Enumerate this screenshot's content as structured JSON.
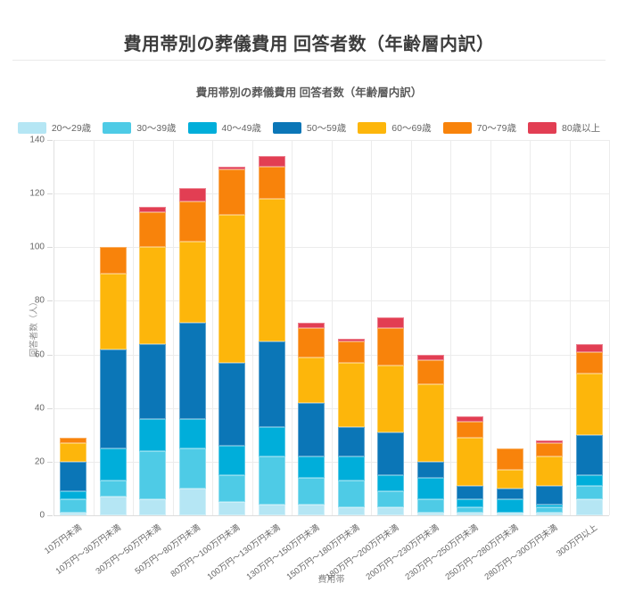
{
  "page": {
    "title": "費用帯別の葬儀費用 回答者数（年齢層内訳）"
  },
  "chart": {
    "subtitle": "費用帯別の葬儀費用 回答者数（年齢層内訳）"
  },
  "chart_data": {
    "type": "bar",
    "stacked": true,
    "title": "費用帯別の葬儀費用 回答者数（年齢層内訳）",
    "xlabel": "費用帯",
    "ylabel": "回答者数（人）",
    "ylim": [
      0,
      140
    ],
    "ytick_step": 20,
    "grid": true,
    "legend_position": "top",
    "categories": [
      "10万円未満",
      "10万円～30万円未満",
      "30万円～50万円未満",
      "50万円～80万円未満",
      "80万円～100万円未満",
      "100万円～130万円未満",
      "130万円～150万円未満",
      "150万円～180万円未満",
      "180万円～200万円未満",
      "200万円～230万円未満",
      "230万円～250万円未満",
      "250万円～280万円未満",
      "280万円～300万円未満",
      "300万円以上"
    ],
    "series": [
      {
        "name": "20～29歳",
        "color": "#b5e6f4",
        "values": [
          1,
          7,
          6,
          10,
          5,
          4,
          4,
          3,
          3,
          1,
          1,
          1,
          1,
          6
        ]
      },
      {
        "name": "30～39歳",
        "color": "#4ecbe6",
        "values": [
          5,
          6,
          18,
          15,
          10,
          18,
          10,
          10,
          6,
          5,
          2,
          0,
          2,
          5
        ]
      },
      {
        "name": "40～49歳",
        "color": "#00aeda",
        "values": [
          3,
          12,
          12,
          11,
          11,
          11,
          8,
          9,
          6,
          8,
          3,
          5,
          1,
          4
        ]
      },
      {
        "name": "50～59歳",
        "color": "#0b76b7",
        "values": [
          11,
          37,
          28,
          36,
          31,
          32,
          20,
          11,
          16,
          6,
          5,
          4,
          7,
          15
        ]
      },
      {
        "name": "60～69歳",
        "color": "#fdb60b",
        "values": [
          7,
          28,
          36,
          30,
          55,
          53,
          17,
          24,
          25,
          29,
          18,
          7,
          11,
          23
        ]
      },
      {
        "name": "70～79歳",
        "color": "#f8830b",
        "values": [
          2,
          10,
          13,
          15,
          17,
          12,
          11,
          8,
          14,
          9,
          6,
          8,
          5,
          8
        ]
      },
      {
        "name": "80歳以上",
        "color": "#e23e53",
        "values": [
          0,
          0,
          2,
          5,
          1,
          4,
          2,
          1,
          4,
          2,
          2,
          0,
          1,
          3
        ]
      }
    ],
    "totals": [
      29,
      100,
      115,
      122,
      130,
      134,
      72,
      66,
      74,
      60,
      37,
      25,
      28,
      64
    ]
  }
}
